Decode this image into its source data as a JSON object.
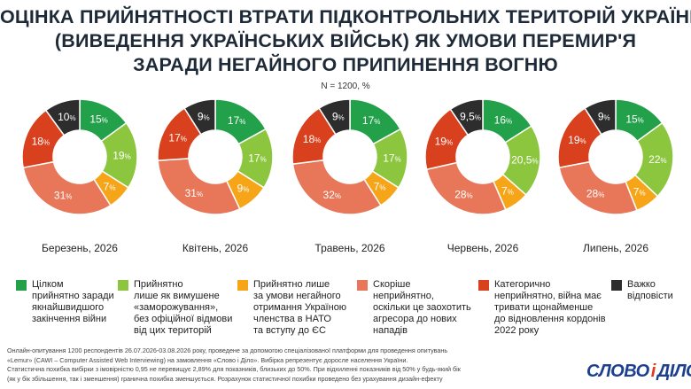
{
  "title_lines": [
    "ОЦІНКА ПРИЙНЯТНОСТІ ВТРАТИ ПІДКОНТРОЛЬНИХ ТЕРИТОРІЙ УКРАЇНИ",
    "(ВИВЕДЕННЯ УКРАЇНСЬКИХ ВІЙСЬК) ЯК УМОВИ ПЕРЕМИР'Я",
    "ЗАРАДИ НЕГАЙНОГО ПРИПИНЕННЯ ВОГНЮ"
  ],
  "subtitle": "N = 1200, %",
  "chart_data": {
    "type": "pie",
    "donut": true,
    "categories": [
      {
        "name": "Цілком прийнятно заради якнайшвидшого закінчення війни",
        "color": "#22a04a"
      },
      {
        "name": "Прийнятно лише як вимушене «заморожування», без офіційної відмови від цих територій",
        "color": "#8cc63f"
      },
      {
        "name": "Прийнятно лише за умови негайного отримання Україною членства в НАТО та вступу до ЄС",
        "color": "#f6a518"
      },
      {
        "name": "Скоріше неприйнятно, оскільки це заохотить агресора до нових нападів",
        "color": "#e8775a"
      },
      {
        "name": "Категорично неприйнятно, війна має тривати щонайменше до відновлення кордонів 2022 року",
        "color": "#d9401e"
      },
      {
        "name": "Важко відповісти",
        "color": "#2d2d2d"
      }
    ],
    "series": [
      {
        "name": "Березень, 2026",
        "values": [
          15,
          19,
          7,
          31,
          18,
          10
        ],
        "labels": [
          "15%",
          "19%",
          "7%",
          "31%",
          "18%",
          "10%"
        ]
      },
      {
        "name": "Квітень, 2026",
        "values": [
          17,
          17,
          9,
          31,
          17,
          9
        ],
        "labels": [
          "17%",
          "17%",
          "9%",
          "31%",
          "17%",
          "9%"
        ]
      },
      {
        "name": "Травень, 2026",
        "values": [
          17,
          17,
          7,
          32,
          18,
          9
        ],
        "labels": [
          "17%",
          "17%",
          "7%",
          "32%",
          "18%",
          "9%"
        ]
      },
      {
        "name": "Червень, 2026",
        "values": [
          16,
          20.5,
          7,
          28,
          19,
          9.5
        ],
        "labels": [
          "16%",
          "20,5%",
          "7%",
          "28%",
          "19%",
          "9,5%"
        ]
      },
      {
        "name": "Липень, 2026",
        "values": [
          15,
          22,
          7,
          28,
          19,
          9
        ],
        "labels": [
          "15%",
          "22%",
          "7%",
          "28%",
          "19%",
          "9%"
        ]
      }
    ]
  },
  "legend": [
    {
      "lines": [
        "Цілком",
        "прийнятно заради",
        "якнайшвидшого",
        "закінчення війни"
      ],
      "color": "#22a04a"
    },
    {
      "lines": [
        "Прийнятно",
        "лише як вимушене",
        "«заморожування»,",
        "без офіційної відмови",
        "від цих територій"
      ],
      "color": "#8cc63f"
    },
    {
      "lines": [
        "Прийнятно лише",
        "за умови негайного",
        "отримання Україною",
        "членства в НАТО",
        "та вступу до ЄС"
      ],
      "color": "#f6a518"
    },
    {
      "lines": [
        "Скоріше",
        "неприйнятно,",
        "оскільки це заохотить",
        "агресора до нових",
        "нападів"
      ],
      "color": "#e8775a"
    },
    {
      "lines": [
        "Категорично",
        "неприйнятно, війна має",
        "тривати щонайменше",
        "до відновлення кордонів",
        "2022 року"
      ],
      "color": "#d9401e"
    },
    {
      "lines": [
        "Важко",
        "відповісти"
      ],
      "color": "#2d2d2d"
    }
  ],
  "footnote_lines": [
    "Онлайн-опитування 1200 респондентів 26.07.2026-03.08.2026 року, проведене за допомогою спеціалізованої платформи для проведення опитувань",
    "«Lemur» (CAWI – Computer Assisted Web Interviewing) на замовлення «Слово і Діло». Вибірка репрезентує доросле населення України.",
    "Статистична похибка вибірки з імовірністю 0,95 не перевищує 2,89% для показників, близьких до 50%. При відхиленні показників від 50% у будь-який бік",
    "(як у бік збільшення, так і зменшення) гранична похибка зменшується. Розрахунок статистичної похибки проведено без урахування дизайн-ефекту"
  ],
  "logo": {
    "left": "СЛОВО",
    "mid": "і",
    "right": "ДІЛО"
  }
}
